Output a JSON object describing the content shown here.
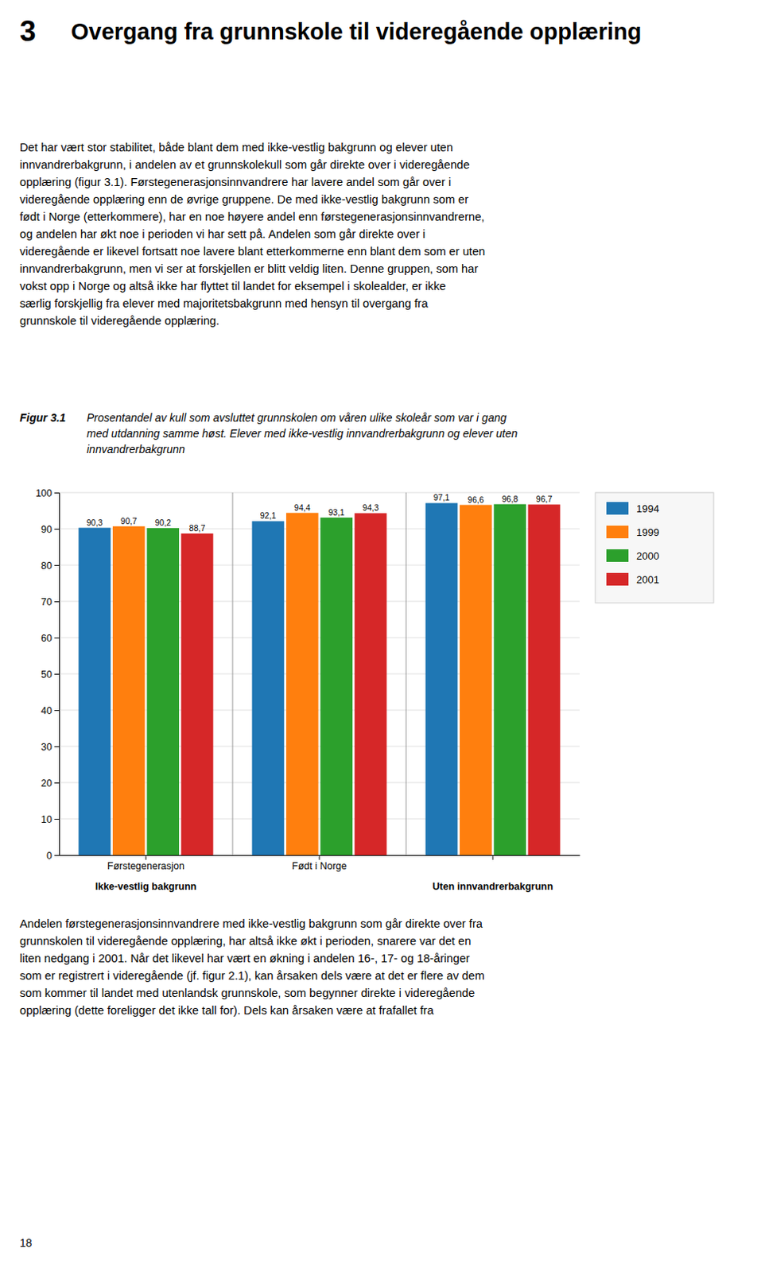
{
  "heading_number": "3",
  "heading": "Overgang fra grunnskole til videregående opplæring",
  "paragraphs": [
    [
      "Det har vært stor stabilitet, både blant dem med ikke-vestlig bakgrunn og elever uten",
      "innvandrerbakgrunn, i andelen av et grunnskolekull som går direkte over i videregående",
      "opplæring (figur 3.1). Førstegenerasjonsinnvandrere har lavere andel som går over i",
      "videregående opplæring enn de øvrige gruppene. De med ikke-vestlig bakgrunn som er",
      "født i Norge (etterkommere), har en noe høyere andel enn førstegenerasjonsinnvandrerne,",
      "og andelen har økt noe i perioden vi har sett på. Andelen som går direkte over i",
      "videregående er likevel fortsatt noe lavere blant etterkommerne enn blant dem som er uten",
      "innvandrerbakgrunn, men vi ser at forskjellen er blitt veldig liten. Denne gruppen, som har",
      "vokst opp i Norge og altså ikke har flyttet til landet for eksempel i skolealder, er ikke",
      "særlig forskjellig fra elever med majoritetsbakgrunn med hensyn til overgang fra",
      "grunnskole til videregående opplæring."
    ],
    [
      "Andelen førstegenerasjonsinnvandrere med ikke-vestlig bakgrunn som går direkte over fra",
      "grunnskolen til videregående opplæring, har altså ikke økt i perioden, snarere var det en",
      "liten nedgang i 2001. Når det likevel har vært en økning i andelen 16-, 17- og 18-åringer",
      "som er registrert i videregående (jf. figur 2.1), kan årsaken dels være at det er flere av dem",
      "som kommer til landet med utenlandsk grunnskole, som begynner direkte i videregående",
      "opplæring (dette foreligger det ikke tall for). Dels kan årsaken være at frafallet fra"
    ]
  ],
  "figure_label": "Figur 3.1",
  "figure_caption": [
    "Prosentandel av kull som avsluttet grunnskolen om våren ulike skoleår som var i gang",
    "med utdanning samme høst. Elever med ikke-vestlig innvandrerbakgrunn og elever uten",
    "innvandrerbakgrunn"
  ],
  "page_number": "18",
  "chart_data": {
    "type": "bar",
    "categories": [
      "Førstegenerasjon",
      "Født i Norge",
      null
    ],
    "category_groups": [
      "Ikke-vestlig bakgrunn",
      null,
      "Uten innvandrerbakgrunn"
    ],
    "series": [
      {
        "name": "1994",
        "values": [
          90.3,
          92.1,
          97.1
        ],
        "value_labels": [
          "90,3",
          "92,1",
          "97,1"
        ]
      },
      {
        "name": "1999",
        "values": [
          90.7,
          94.4,
          96.6
        ],
        "value_labels": [
          "90,7",
          "94,4",
          "96,6"
        ]
      },
      {
        "name": "2000",
        "values": [
          90.2,
          93.1,
          96.8
        ],
        "value_labels": [
          "90,2",
          "93,1",
          "96,8"
        ]
      },
      {
        "name": "2001",
        "values": [
          88.7,
          94.3,
          96.7
        ],
        "value_labels": [
          "88,7",
          "94,3",
          "96,7"
        ]
      }
    ],
    "ylim": [
      0,
      100
    ],
    "yticks": [
      0,
      10,
      20,
      30,
      40,
      50,
      60,
      70,
      80,
      90,
      100
    ],
    "grid": true,
    "data_labels": true,
    "legend": "right"
  }
}
